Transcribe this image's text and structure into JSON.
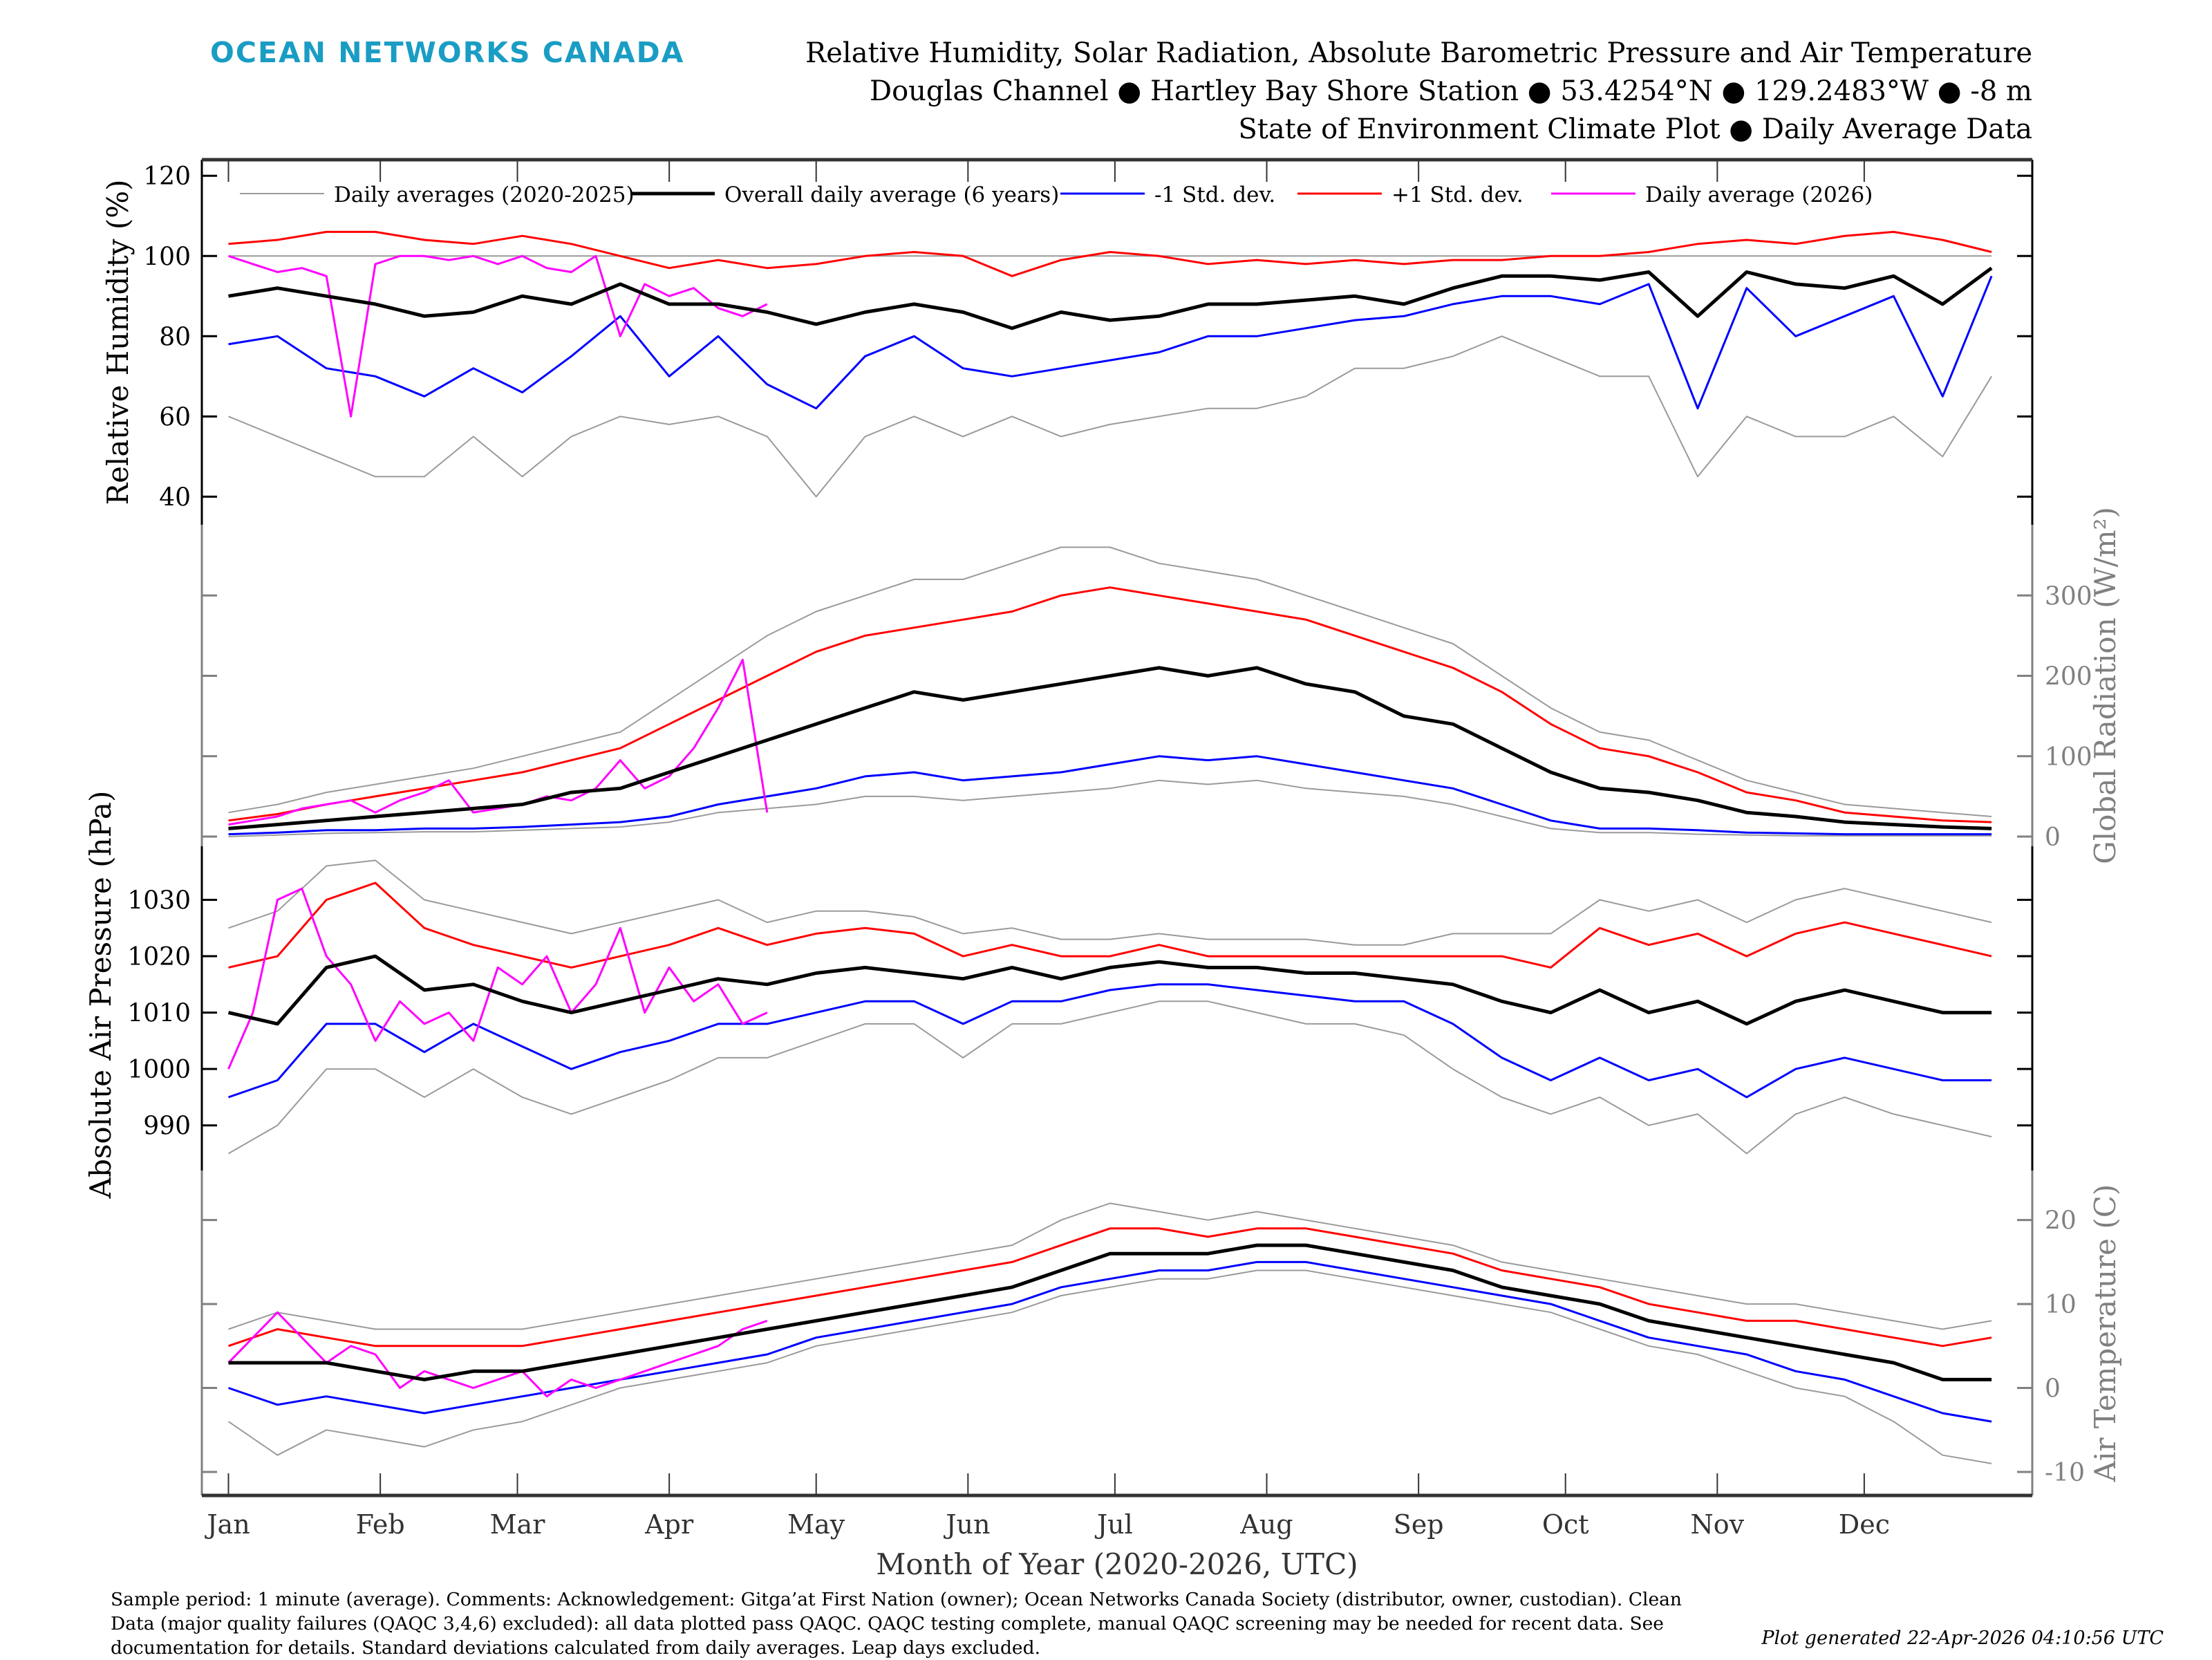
{
  "header": {
    "logo": "OCEAN NETWORKS CANADA",
    "title_lines": [
      "Relative Humidity, Solar Radiation, Absolute Barometric Pressure and Air Temperature",
      "Douglas Channel ● Hartley Bay Shore Station ● 53.4254°N ● 129.2483°W ● -8 m",
      "State of Environment Climate Plot ● Daily Average Data"
    ]
  },
  "footer": {
    "notes": [
      "Sample period: 1 minute (average). Comments: Acknowledgement: Gitga’at First Nation (owner); Ocean Networks Canada Society (distributor, owner, custodian). Clean",
      "Data (major quality failures (QAQC 3,4,6) excluded): all data plotted pass QAQC. QAQC testing complete, manual QAQC screening may be needed for recent data. See",
      "documentation for details. Standard deviations calculated from daily averages. Leap days excluded."
    ],
    "generated": "Plot generated 22-Apr-2026 04:10:56 UTC"
  },
  "colors": {
    "logo": "#1a9dc4",
    "gray": "#9a9a9a",
    "mean": "#000000",
    "minus": "#0000ff",
    "plus": "#ff0000",
    "current": "#ff00ff",
    "right_axis": "#808080"
  },
  "chart_data": {
    "type": "line",
    "xlabel": "Month of Year (2020-2026, UTC)",
    "x_ticks": [
      "Jan",
      "Feb",
      "Mar",
      "Apr",
      "May",
      "Jun",
      "Jul",
      "Aug",
      "Sep",
      "Oct",
      "Nov",
      "Dec"
    ],
    "x_tick_days": [
      1,
      32,
      60,
      91,
      121,
      152,
      182,
      213,
      244,
      274,
      305,
      335
    ],
    "xlim": [
      1,
      365
    ],
    "legend": {
      "placement": "top",
      "entries": [
        "Daily averages (2020-2025)",
        "Overall daily average (6 years)",
        "-1 Std. dev.",
        "+1 Std. dev.",
        "Daily average (2026)"
      ]
    },
    "days": [
      1,
      11,
      21,
      31,
      41,
      51,
      61,
      71,
      81,
      91,
      101,
      111,
      121,
      131,
      141,
      151,
      161,
      171,
      181,
      191,
      201,
      211,
      221,
      231,
      241,
      251,
      261,
      271,
      281,
      291,
      301,
      311,
      321,
      331,
      341,
      351,
      361
    ],
    "current_days": [
      1,
      6,
      11,
      16,
      21,
      26,
      31,
      36,
      41,
      46,
      51,
      56,
      61,
      66,
      71,
      76,
      81,
      86,
      91,
      96,
      101,
      106,
      111
    ],
    "panels": [
      {
        "name": "humidity",
        "ylabel": "Relative Humidity (%)",
        "axis_side": "left",
        "ylim": [
          33,
          124
        ],
        "yticks": [
          40,
          60,
          80,
          100,
          120
        ],
        "mean": [
          90,
          92,
          90,
          88,
          85,
          86,
          90,
          88,
          93,
          88,
          88,
          86,
          83,
          86,
          88,
          86,
          82,
          86,
          84,
          85,
          88,
          88,
          89,
          90,
          88,
          92,
          95,
          95,
          94,
          96,
          85,
          96,
          93,
          92,
          95,
          88,
          97
        ],
        "minus": [
          78,
          80,
          72,
          70,
          65,
          72,
          66,
          75,
          85,
          70,
          80,
          68,
          62,
          75,
          80,
          72,
          70,
          72,
          74,
          76,
          80,
          80,
          82,
          84,
          85,
          88,
          90,
          90,
          88,
          93,
          62,
          92,
          80,
          85,
          90,
          65,
          95
        ],
        "plus": [
          103,
          104,
          106,
          106,
          104,
          103,
          105,
          103,
          100,
          97,
          99,
          97,
          98,
          100,
          101,
          100,
          95,
          99,
          101,
          100,
          98,
          99,
          98,
          99,
          98,
          99,
          99,
          100,
          100,
          101,
          103,
          104,
          103,
          105,
          106,
          104,
          101
        ],
        "range_min": [
          60,
          55,
          50,
          45,
          45,
          55,
          45,
          55,
          60,
          58,
          60,
          55,
          40,
          55,
          60,
          55,
          60,
          55,
          58,
          60,
          62,
          62,
          65,
          72,
          72,
          75,
          80,
          75,
          70,
          70,
          45,
          60,
          55,
          55,
          60,
          50,
          70
        ],
        "range_max": [
          100,
          100,
          100,
          100,
          100,
          100,
          100,
          100,
          100,
          100,
          100,
          100,
          100,
          100,
          100,
          100,
          100,
          100,
          100,
          100,
          100,
          100,
          100,
          100,
          100,
          100,
          100,
          100,
          100,
          100,
          100,
          100,
          100,
          100,
          100,
          100,
          100
        ],
        "current": [
          100,
          98,
          96,
          97,
          95,
          60,
          98,
          100,
          100,
          99,
          100,
          98,
          100,
          97,
          96,
          100,
          80,
          93,
          90,
          92,
          87,
          85,
          88
        ]
      },
      {
        "name": "radiation",
        "ylabel": "Global Radiation (W/m²)",
        "axis_side": "right",
        "ylim": [
          -12,
          388
        ],
        "yticks": [
          0,
          100,
          200,
          300
        ],
        "mean": [
          10,
          15,
          20,
          25,
          30,
          35,
          40,
          55,
          60,
          80,
          100,
          120,
          140,
          160,
          180,
          170,
          180,
          190,
          200,
          210,
          200,
          210,
          190,
          180,
          150,
          140,
          110,
          80,
          60,
          55,
          45,
          30,
          25,
          18,
          15,
          12,
          10
        ],
        "minus": [
          3,
          5,
          8,
          8,
          10,
          10,
          12,
          15,
          18,
          25,
          40,
          50,
          60,
          75,
          80,
          70,
          75,
          80,
          90,
          100,
          95,
          100,
          90,
          80,
          70,
          60,
          40,
          20,
          10,
          10,
          8,
          5,
          4,
          3,
          3,
          3,
          3
        ],
        "plus": [
          20,
          28,
          40,
          50,
          60,
          70,
          80,
          95,
          110,
          140,
          170,
          200,
          230,
          250,
          260,
          270,
          280,
          300,
          310,
          300,
          290,
          280,
          270,
          250,
          230,
          210,
          180,
          140,
          110,
          100,
          80,
          55,
          45,
          30,
          25,
          20,
          18
        ],
        "range_min": [
          0,
          2,
          4,
          5,
          6,
          6,
          8,
          10,
          12,
          18,
          30,
          35,
          40,
          50,
          50,
          45,
          50,
          55,
          60,
          70,
          65,
          70,
          60,
          55,
          50,
          40,
          25,
          10,
          5,
          5,
          3,
          2,
          1,
          1,
          1,
          1,
          1
        ],
        "range_max": [
          30,
          40,
          55,
          65,
          75,
          85,
          100,
          115,
          130,
          170,
          210,
          250,
          280,
          300,
          320,
          320,
          340,
          360,
          360,
          340,
          330,
          320,
          300,
          280,
          260,
          240,
          200,
          160,
          130,
          120,
          95,
          70,
          55,
          40,
          35,
          30,
          25
        ],
        "current": [
          15,
          20,
          25,
          35,
          40,
          45,
          30,
          45,
          55,
          70,
          30,
          35,
          40,
          50,
          45,
          60,
          95,
          60,
          75,
          110,
          160,
          220,
          30
        ]
      },
      {
        "name": "pressure",
        "ylabel": "Absolute Air Pressure (hPa)",
        "axis_side": "left",
        "ylim": [
          982,
          1039.5
        ],
        "yticks": [
          990,
          1000,
          1010,
          1020,
          1030
        ],
        "mean": [
          1010,
          1008,
          1018,
          1020,
          1014,
          1015,
          1012,
          1010,
          1012,
          1014,
          1016,
          1015,
          1017,
          1018,
          1017,
          1016,
          1018,
          1016,
          1018,
          1019,
          1018,
          1018,
          1017,
          1017,
          1016,
          1015,
          1012,
          1010,
          1014,
          1010,
          1012,
          1008,
          1012,
          1014,
          1012,
          1010,
          1010
        ],
        "minus": [
          995,
          998,
          1008,
          1008,
          1003,
          1008,
          1004,
          1000,
          1003,
          1005,
          1008,
          1008,
          1010,
          1012,
          1012,
          1008,
          1012,
          1012,
          1014,
          1015,
          1015,
          1014,
          1013,
          1012,
          1012,
          1008,
          1002,
          998,
          1002,
          998,
          1000,
          995,
          1000,
          1002,
          1000,
          998,
          998
        ],
        "plus": [
          1018,
          1020,
          1030,
          1033,
          1025,
          1022,
          1020,
          1018,
          1020,
          1022,
          1025,
          1022,
          1024,
          1025,
          1024,
          1020,
          1022,
          1020,
          1020,
          1022,
          1020,
          1020,
          1020,
          1020,
          1020,
          1020,
          1020,
          1018,
          1025,
          1022,
          1024,
          1020,
          1024,
          1026,
          1024,
          1022,
          1020
        ],
        "range_min": [
          985,
          990,
          1000,
          1000,
          995,
          1000,
          995,
          992,
          995,
          998,
          1002,
          1002,
          1005,
          1008,
          1008,
          1002,
          1008,
          1008,
          1010,
          1012,
          1012,
          1010,
          1008,
          1008,
          1006,
          1000,
          995,
          992,
          995,
          990,
          992,
          985,
          992,
          995,
          992,
          990,
          988
        ],
        "range_max": [
          1025,
          1028,
          1036,
          1037,
          1030,
          1028,
          1026,
          1024,
          1026,
          1028,
          1030,
          1026,
          1028,
          1028,
          1027,
          1024,
          1025,
          1023,
          1023,
          1024,
          1023,
          1023,
          1023,
          1022,
          1022,
          1024,
          1024,
          1024,
          1030,
          1028,
          1030,
          1026,
          1030,
          1032,
          1030,
          1028,
          1026
        ],
        "current": [
          1000,
          1010,
          1030,
          1032,
          1020,
          1015,
          1005,
          1012,
          1008,
          1010,
          1005,
          1018,
          1015,
          1020,
          1010,
          1015,
          1025,
          1010,
          1018,
          1012,
          1015,
          1008,
          1010
        ]
      },
      {
        "name": "temperature",
        "ylabel": "Air Temperature (C)",
        "axis_side": "right",
        "ylim": [
          -12.8,
          25.9
        ],
        "yticks": [
          -10,
          0,
          10,
          20
        ],
        "mean": [
          3,
          3,
          3,
          2,
          1,
          2,
          2,
          3,
          4,
          5,
          6,
          7,
          8,
          9,
          10,
          11,
          12,
          14,
          16,
          16,
          16,
          17,
          17,
          16,
          15,
          14,
          12,
          11,
          10,
          8,
          7,
          6,
          5,
          4,
          3,
          1,
          1
        ],
        "minus": [
          0,
          -2,
          -1,
          -2,
          -3,
          -2,
          -1,
          0,
          1,
          2,
          3,
          4,
          6,
          7,
          8,
          9,
          10,
          12,
          13,
          14,
          14,
          15,
          15,
          14,
          13,
          12,
          11,
          10,
          8,
          6,
          5,
          4,
          2,
          1,
          -1,
          -3,
          -4
        ],
        "plus": [
          5,
          7,
          6,
          5,
          5,
          5,
          5,
          6,
          7,
          8,
          9,
          10,
          11,
          12,
          13,
          14,
          15,
          17,
          19,
          19,
          18,
          19,
          19,
          18,
          17,
          16,
          14,
          13,
          12,
          10,
          9,
          8,
          8,
          7,
          6,
          5,
          6
        ],
        "range_min": [
          -4,
          -8,
          -5,
          -6,
          -7,
          -5,
          -4,
          -2,
          0,
          1,
          2,
          3,
          5,
          6,
          7,
          8,
          9,
          11,
          12,
          13,
          13,
          14,
          14,
          13,
          12,
          11,
          10,
          9,
          7,
          5,
          4,
          2,
          0,
          -1,
          -4,
          -8,
          -9
        ],
        "range_max": [
          7,
          9,
          8,
          7,
          7,
          7,
          7,
          8,
          9,
          10,
          11,
          12,
          13,
          14,
          15,
          16,
          17,
          20,
          22,
          21,
          20,
          21,
          20,
          19,
          18,
          17,
          15,
          14,
          13,
          12,
          11,
          10,
          10,
          9,
          8,
          7,
          8
        ],
        "current": [
          3,
          6,
          9,
          6,
          3,
          5,
          4,
          0,
          2,
          1,
          0,
          1,
          2,
          -1,
          1,
          0,
          1,
          2,
          3,
          4,
          5,
          7,
          8
        ]
      }
    ]
  }
}
